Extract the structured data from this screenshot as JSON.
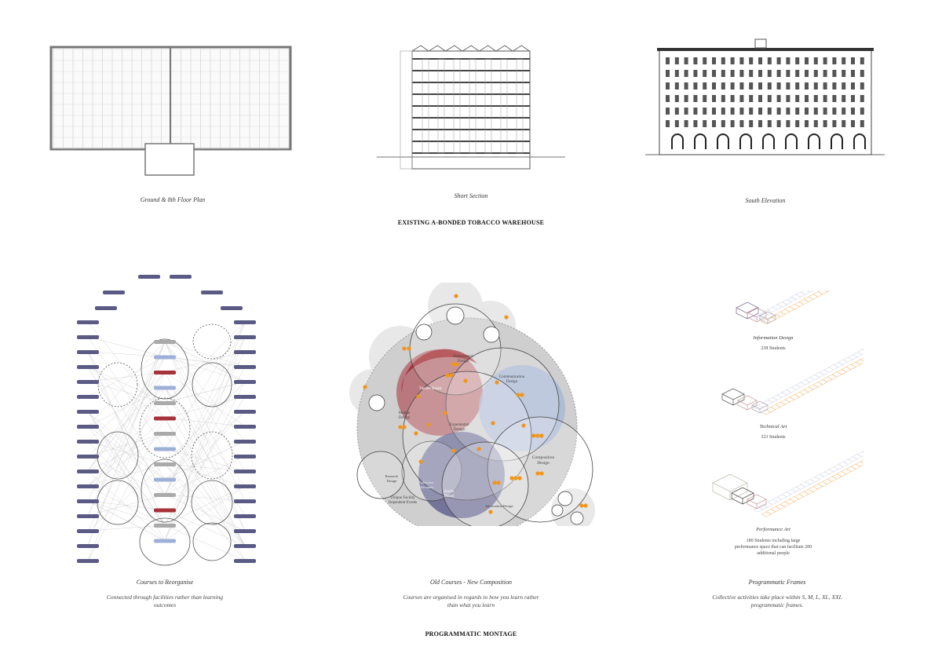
{
  "existing": {
    "heading": "EXISTING A-BONDED TOBACCO WAREHOUSE",
    "plan_caption": "Ground & 8th Floor Plan",
    "section_caption": "Short Section",
    "elevation_caption": "South Elevation"
  },
  "montage": {
    "heading": "PROGRAMMATIC MONTAGE",
    "network": {
      "caption": "Courses to Reorganise",
      "subcaption": "Connected through facilities rather than learning outcomes"
    },
    "composition": {
      "caption": "Old Courses - New Composition",
      "subcaption": "Courses are organised in regards to how you learn rather than what you learn",
      "labels": {
        "performance": "Performance Design",
        "communication": "Communication Design",
        "theatre": "Theatre Based",
        "motion": "Motion Design",
        "experiential": "Experiential Design",
        "composition": "Composition Design",
        "research": "Research Design",
        "collective": "Collective Outcomes",
        "studio": "Studio Based",
        "information": "Information Design",
        "unique": "Unique Facility Dependent Events"
      }
    },
    "frames": {
      "caption": "Programmatic Frames",
      "subcaption": "Collective activities take place within S, M, L, XL, XXL programmatic frames.",
      "items": [
        {
          "name": "Information Design",
          "detail": "238 Students"
        },
        {
          "name": "Technical Art",
          "detail": "323 Students"
        },
        {
          "name": "Performance Art",
          "detail": "180 Students including large performance space that can facilitate 200 additional people"
        }
      ]
    }
  },
  "colors": {
    "red": "#a8323a",
    "blue": "#9fb4d8",
    "purple": "#4a4a7a",
    "orange": "#f0961e",
    "grey": "#d9d9d9"
  }
}
